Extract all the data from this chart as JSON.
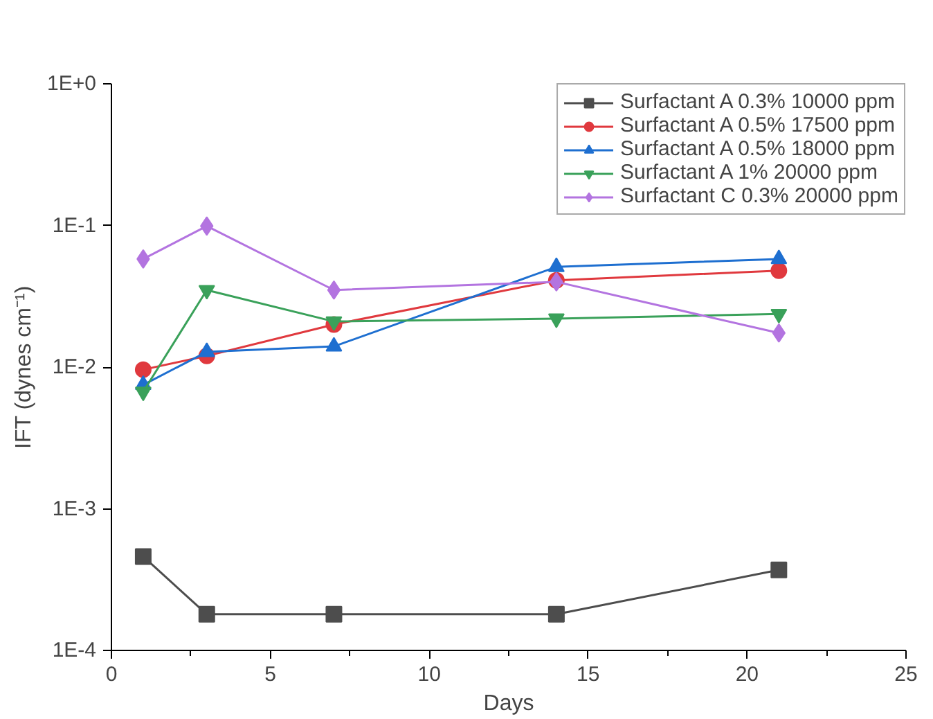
{
  "chart_data": {
    "type": "line",
    "xlabel": "Days",
    "ylabel": "IFT (dynes cm⁻¹)",
    "x": [
      1,
      3,
      7,
      14,
      21
    ],
    "series": [
      {
        "name": "Surfactant A 0.3% 10000 ppm",
        "color": "#4d4d4d",
        "marker": "square",
        "values": [
          0.00046,
          0.00018,
          0.00018,
          0.00018,
          0.00037
        ]
      },
      {
        "name": "Surfactant A 0.5% 17500 ppm",
        "color": "#e0393e",
        "marker": "circle",
        "values": [
          0.0096,
          0.012,
          0.02,
          0.041,
          0.048
        ]
      },
      {
        "name": "Surfactant A 0.5% 18000 ppm",
        "color": "#1e6fd0",
        "marker": "triangle",
        "values": [
          0.0075,
          0.0128,
          0.014,
          0.051,
          0.058
        ]
      },
      {
        "name": "Surfactant A 1% 20000 ppm",
        "color": "#3aa15a",
        "marker": "triangle",
        "values": [
          0.0067,
          0.035,
          0.021,
          0.022,
          0.0237
        ]
      },
      {
        "name": "Surfactant C 0.3% 20000 ppm",
        "color": "#b374e0",
        "marker": "diamond",
        "values": [
          0.058,
          0.099,
          0.035,
          0.04,
          0.0174
        ]
      }
    ],
    "xlim": [
      0,
      25
    ],
    "xticks": [
      0,
      5,
      10,
      15,
      20,
      25
    ],
    "ylim": [
      0.0001,
      1
    ],
    "yticks": [
      {
        "value": 0.0001,
        "label": "1E-4"
      },
      {
        "value": 0.001,
        "label": "1E-3"
      },
      {
        "value": 0.01,
        "label": "1E-2"
      },
      {
        "value": 0.1,
        "label": "1E-1"
      },
      {
        "value": 1,
        "label": "1E+0"
      }
    ],
    "log": "y",
    "grid": false,
    "legend": "top right",
    "line_style": "solid"
  }
}
